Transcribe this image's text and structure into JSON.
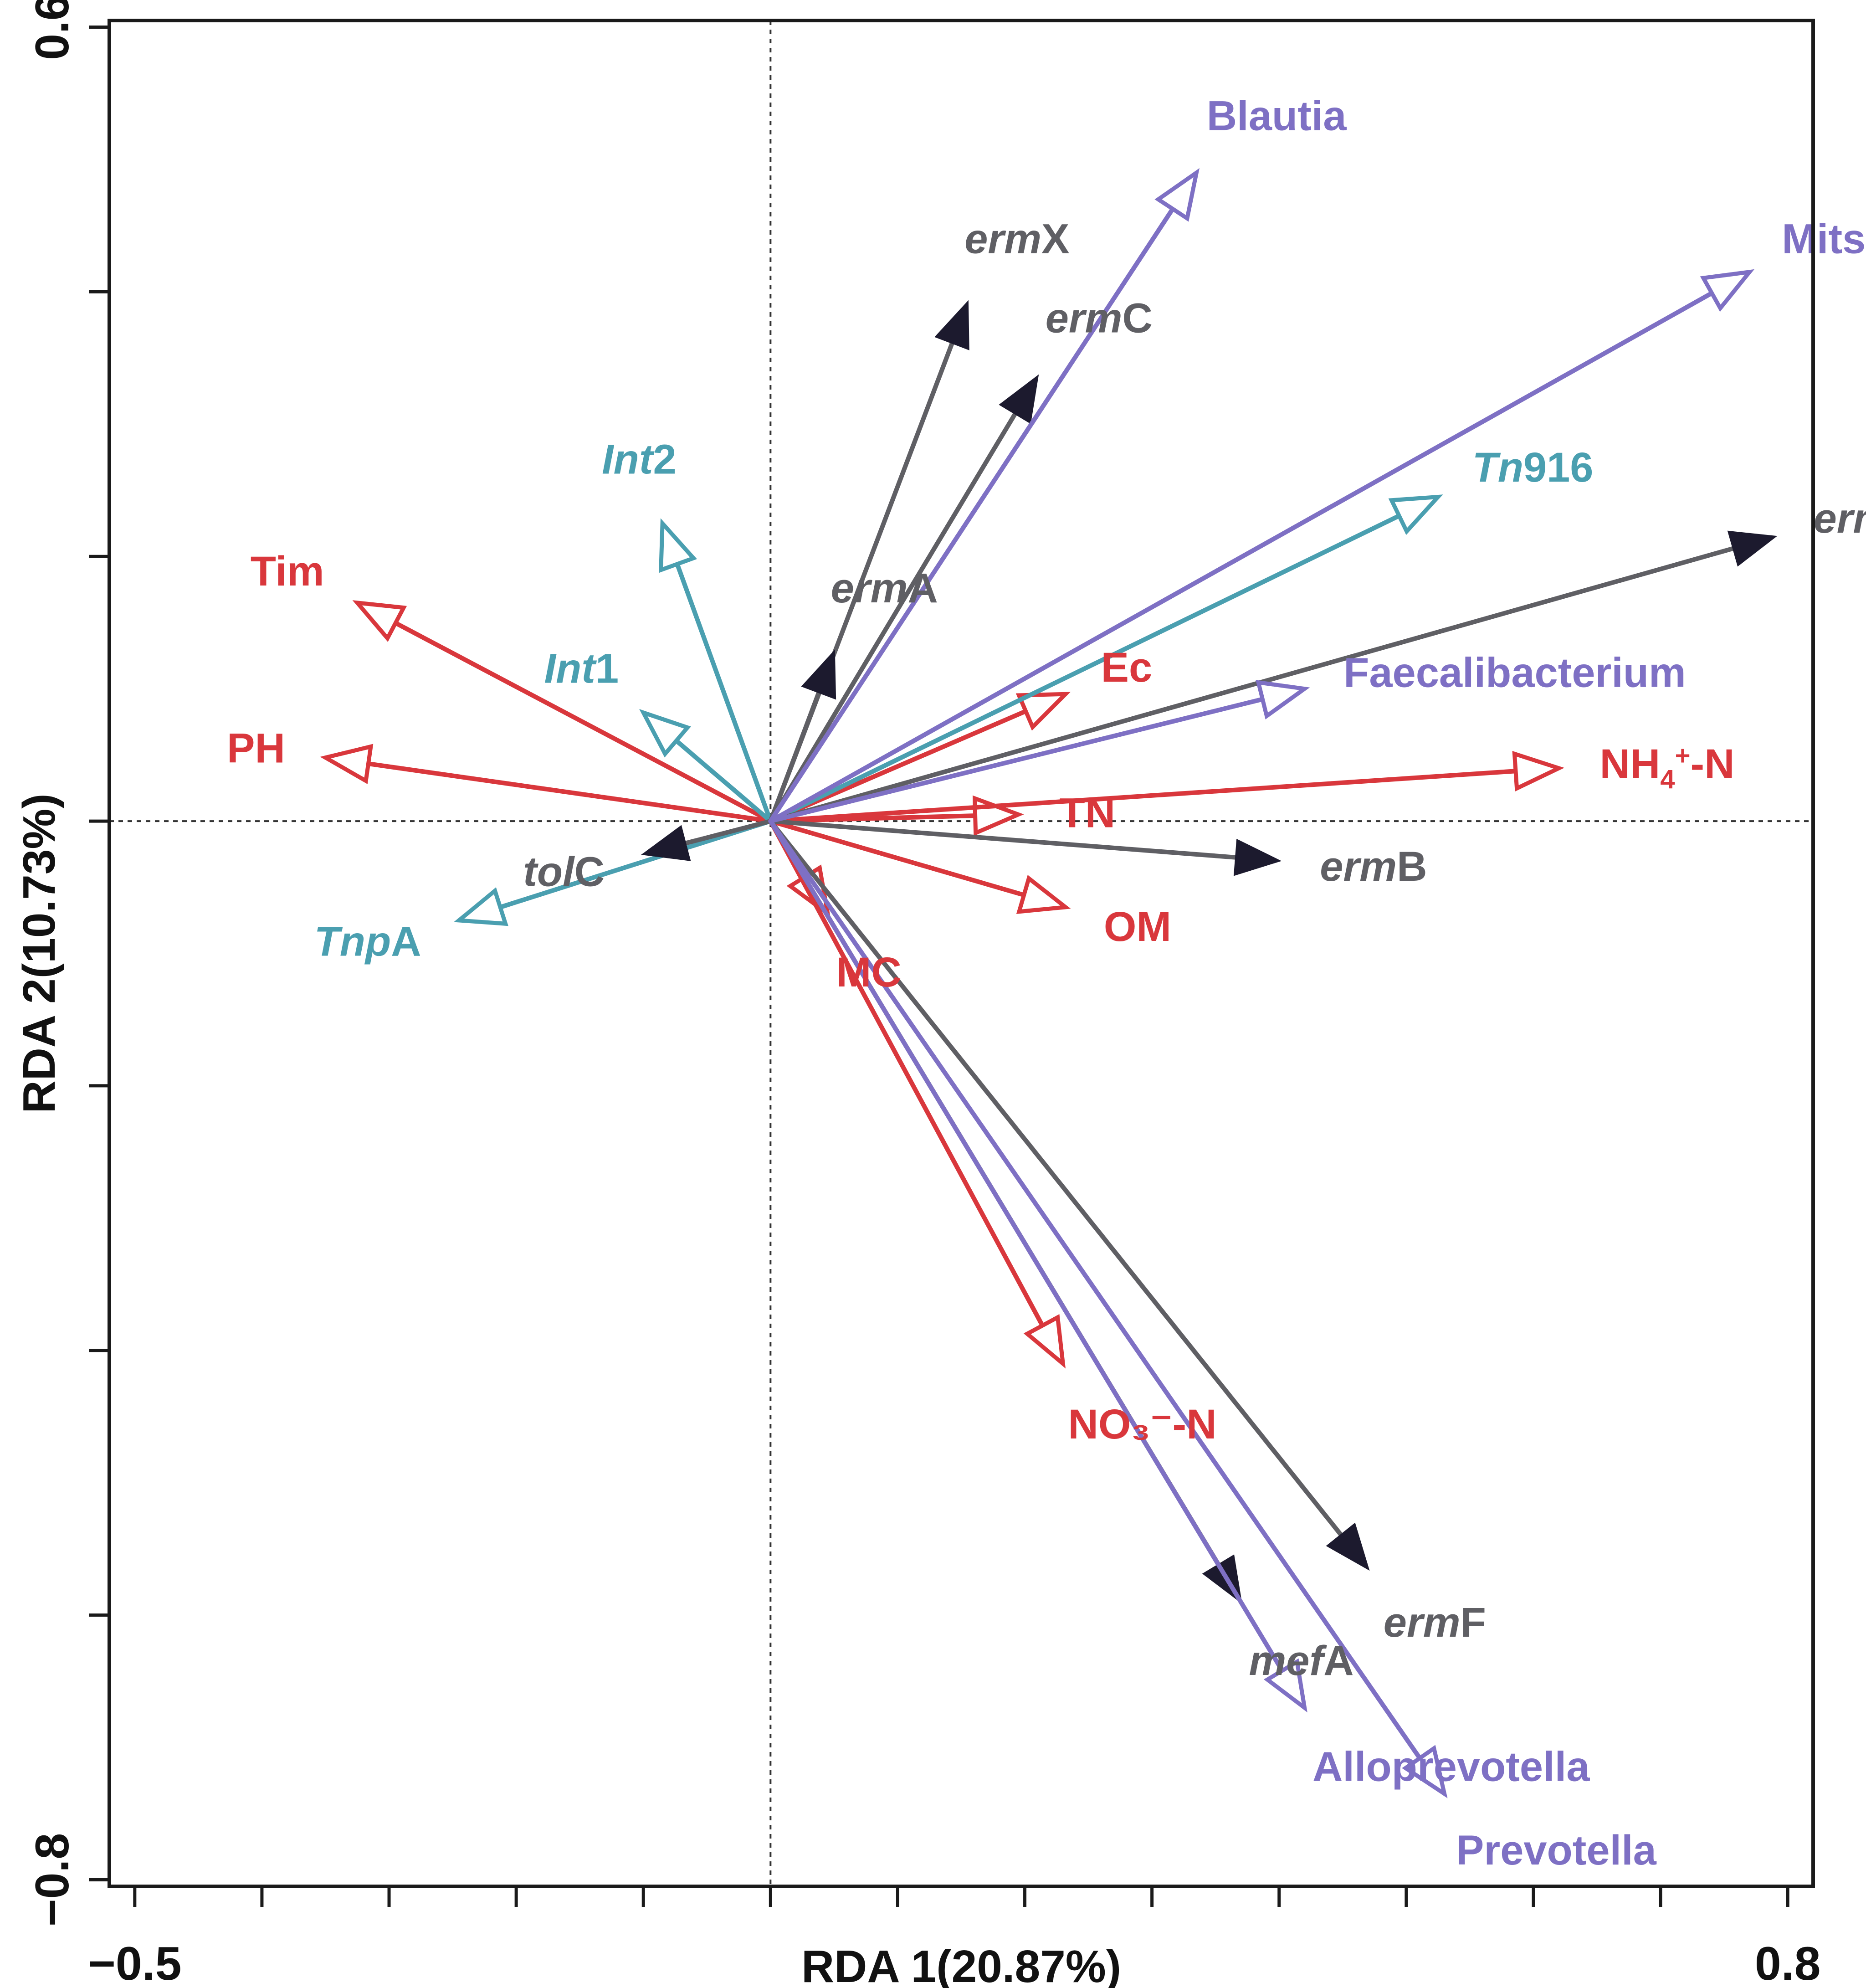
{
  "chart_data": {
    "type": "scatter",
    "subtype": "rda-biplot",
    "title": "",
    "xlabel": "RDA 1(20.87%)",
    "ylabel": "RDA 2(10.73%)",
    "xlim": [
      -0.52,
      0.82
    ],
    "ylim": [
      -0.805,
      0.605
    ],
    "x_tick_labels": [
      "−0.5",
      "0.8"
    ],
    "y_tick_labels": [
      "0.6",
      "−0.8"
    ],
    "x_ticks": [
      -0.5,
      -0.4,
      -0.3,
      -0.2,
      -0.1,
      0.0,
      0.1,
      0.2,
      0.3,
      0.4,
      0.5,
      0.6,
      0.7,
      0.8
    ],
    "y_ticks": [
      0.6,
      0.4,
      0.2,
      0.0,
      -0.2,
      -0.4,
      -0.6,
      -0.8
    ],
    "reference_lines": {
      "x": 0,
      "y": 0,
      "style": "dotted"
    },
    "colors": {
      "environmental": "#d9373c",
      "mge": "#4a9fb0",
      "arg": "#5f5f64",
      "arg_head": "#1c1a2e",
      "genus": "#7e70c4"
    },
    "vectors": [
      {
        "label": "Tim",
        "group": "environmental",
        "x": -0.325,
        "y": 0.165,
        "head": "open",
        "italic": ""
      },
      {
        "label": "PH",
        "group": "environmental",
        "x": -0.35,
        "y": 0.048,
        "head": "open",
        "italic": ""
      },
      {
        "label": "Ec",
        "group": "environmental",
        "x": 0.232,
        "y": 0.096,
        "head": "open",
        "italic": ""
      },
      {
        "label": "TN",
        "group": "environmental",
        "x": 0.195,
        "y": 0.005,
        "head": "open",
        "italic": ""
      },
      {
        "label": "NH",
        "sub": "4",
        "sup": "+",
        "rest": "-N",
        "group": "environmental",
        "x": 0.62,
        "y": 0.04,
        "head": "open",
        "italic": ""
      },
      {
        "label": "OM",
        "group": "environmental",
        "x": 0.232,
        "y": -0.065,
        "head": "open",
        "italic": ""
      },
      {
        "label": "MC",
        "group": "environmental",
        "x": 0.045,
        "y": -0.07,
        "head": "open",
        "italic": ""
      },
      {
        "label": "NO₃⁻-N",
        "group": "environmental",
        "x": 0.23,
        "y": -0.41,
        "head": "open",
        "italic": ""
      },
      {
        "label": "Int2",
        "group": "mge",
        "x": -0.085,
        "y": 0.225,
        "head": "open",
        "italic": "Int",
        "rest": "2"
      },
      {
        "label": "Int1",
        "group": "mge",
        "x": -0.1,
        "y": 0.082,
        "head": "open",
        "italic": "Int",
        "rest": "1"
      },
      {
        "label": "TnpA",
        "group": "mge",
        "x": -0.245,
        "y": -0.075,
        "head": "open",
        "italic": "Tnp",
        "rest": "A"
      },
      {
        "label": "Tn916",
        "group": "mge",
        "x": 0.525,
        "y": 0.245,
        "head": "open",
        "italic": "Tn",
        "rest": "916"
      },
      {
        "label": "ermX",
        "group": "arg",
        "x": 0.155,
        "y": 0.392,
        "head": "filled",
        "italic": "erm",
        "rest": "X"
      },
      {
        "label": "ermC",
        "group": "arg",
        "x": 0.21,
        "y": 0.336,
        "head": "filled",
        "italic": "erm",
        "rest": "C"
      },
      {
        "label": "ermA",
        "group": "arg",
        "x": 0.05,
        "y": 0.128,
        "head": "filled",
        "italic": "erm",
        "rest": "A"
      },
      {
        "label": "ermQ",
        "group": "arg",
        "x": 0.79,
        "y": 0.215,
        "head": "filled",
        "italic": "erm",
        "rest": "Q"
      },
      {
        "label": "ermB",
        "group": "arg",
        "x": 0.4,
        "y": -0.03,
        "head": "filled",
        "italic": "erm",
        "rest": "B"
      },
      {
        "label": "tolC",
        "group": "arg",
        "x": -0.1,
        "y": -0.025,
        "head": "filled",
        "italic": "tol",
        "rest": "C"
      },
      {
        "label": "ermF",
        "group": "arg",
        "x": 0.47,
        "y": -0.565,
        "head": "filled",
        "italic": "erm",
        "rest": "F"
      },
      {
        "label": "mefA",
        "group": "arg",
        "x": 0.37,
        "y": -0.59,
        "head": "filled",
        "italic": "mef",
        "rest": "A"
      },
      {
        "label": "Blautia",
        "group": "genus",
        "x": 0.335,
        "y": 0.49,
        "head": "open",
        "italic": ""
      },
      {
        "label": "Mitsuokella",
        "group": "genus",
        "x": 0.77,
        "y": 0.415,
        "head": "open",
        "italic": ""
      },
      {
        "label": "Faecalibacterium",
        "group": "genus",
        "x": 0.42,
        "y": 0.1,
        "head": "open",
        "italic": ""
      },
      {
        "label": "Alloprevotella",
        "group": "genus",
        "x": 0.42,
        "y": -0.67,
        "head": "open",
        "italic": ""
      },
      {
        "label": "Prevotella",
        "group": "genus",
        "x": 0.53,
        "y": -0.735,
        "head": "open",
        "italic": ""
      }
    ]
  }
}
